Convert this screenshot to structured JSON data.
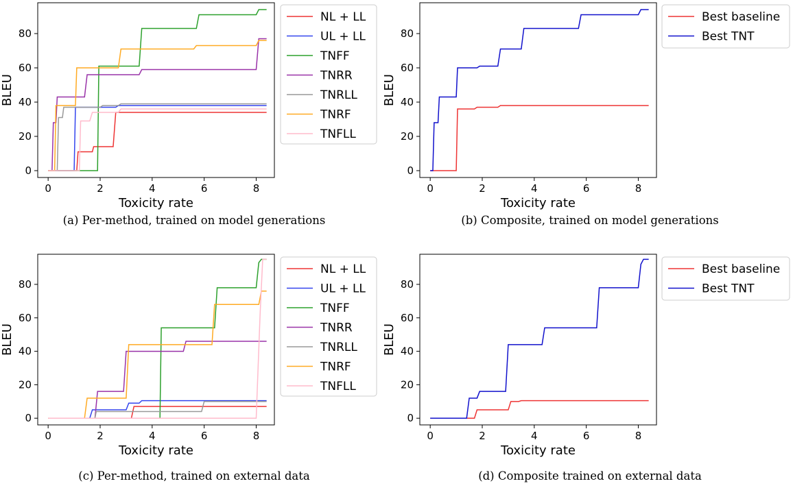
{
  "chart_data": [
    {
      "panel": "a",
      "type": "line",
      "caption": "(a) Per-method, trained on model generations",
      "xlabel": "Toxicity rate",
      "ylabel": "BLEU",
      "xlim": [
        -0.4,
        8.7
      ],
      "ylim": [
        -4,
        98
      ],
      "xticks": [
        0,
        2,
        4,
        6,
        8
      ],
      "yticks": [
        0,
        20,
        40,
        60,
        80
      ],
      "grid": false,
      "legend": "outside-right",
      "series": [
        {
          "name": "NL + LL",
          "color": "#ee3333",
          "step": true,
          "points": [
            [
              0,
              0
            ],
            [
              1.1,
              0
            ],
            [
              1.15,
              11
            ],
            [
              1.7,
              11
            ],
            [
              1.75,
              14
            ],
            [
              2.5,
              14
            ],
            [
              2.6,
              34
            ],
            [
              8.4,
              34
            ]
          ]
        },
        {
          "name": "UL + LL",
          "color": "#3344ee",
          "step": true,
          "points": [
            [
              0,
              0
            ],
            [
              1.0,
              0
            ],
            [
              1.05,
              37
            ],
            [
              2.6,
              37
            ],
            [
              2.7,
              38
            ],
            [
              8.4,
              38
            ]
          ]
        },
        {
          "name": "TNFF",
          "color": "#2ca02c",
          "step": true,
          "points": [
            [
              0,
              0
            ],
            [
              1.9,
              0
            ],
            [
              1.95,
              61
            ],
            [
              3.5,
              61
            ],
            [
              3.6,
              83
            ],
            [
              5.7,
              83
            ],
            [
              5.8,
              91
            ],
            [
              8.0,
              91
            ],
            [
              8.1,
              94
            ],
            [
              8.4,
              94
            ]
          ]
        },
        {
          "name": "TNRR",
          "color": "#9932a8",
          "step": true,
          "points": [
            [
              0,
              0
            ],
            [
              0.15,
              0
            ],
            [
              0.2,
              28
            ],
            [
              0.3,
              28
            ],
            [
              0.35,
              43
            ],
            [
              1.4,
              43
            ],
            [
              1.5,
              56
            ],
            [
              3.5,
              56
            ],
            [
              3.6,
              59
            ],
            [
              8.0,
              59
            ],
            [
              8.1,
              77
            ],
            [
              8.4,
              77
            ]
          ]
        },
        {
          "name": "TNRLL",
          "color": "#999999",
          "step": true,
          "points": [
            [
              0,
              0
            ],
            [
              0.35,
              0
            ],
            [
              0.4,
              31
            ],
            [
              0.55,
              31
            ],
            [
              0.6,
              37
            ],
            [
              2.0,
              37
            ],
            [
              2.1,
              38
            ],
            [
              2.7,
              38
            ],
            [
              2.8,
              39
            ],
            [
              8.4,
              39
            ]
          ]
        },
        {
          "name": "TNRF",
          "color": "#ffaa22",
          "step": true,
          "points": [
            [
              0,
              0
            ],
            [
              0.25,
              0
            ],
            [
              0.3,
              38
            ],
            [
              1.05,
              38
            ],
            [
              1.1,
              60
            ],
            [
              2.7,
              60
            ],
            [
              2.8,
              71
            ],
            [
              5.6,
              71
            ],
            [
              5.7,
              73
            ],
            [
              8.0,
              73
            ],
            [
              8.1,
              76
            ],
            [
              8.4,
              76
            ]
          ]
        },
        {
          "name": "TNFLL",
          "color": "#ffbbcc",
          "step": true,
          "points": [
            [
              0,
              0
            ],
            [
              1.2,
              0
            ],
            [
              1.25,
              29
            ],
            [
              1.6,
              29
            ],
            [
              1.7,
              34
            ],
            [
              2.7,
              34
            ],
            [
              2.8,
              36
            ],
            [
              8.4,
              36
            ]
          ]
        }
      ]
    },
    {
      "panel": "b",
      "type": "line",
      "caption": "(b) Composite, trained on model generations",
      "xlabel": "Toxicity rate",
      "ylabel": "BLEU",
      "xlim": [
        -0.4,
        8.7
      ],
      "ylim": [
        -4,
        98
      ],
      "xticks": [
        0,
        2,
        4,
        6,
        8
      ],
      "yticks": [
        0,
        20,
        40,
        60,
        80
      ],
      "grid": false,
      "legend": "outside-right",
      "series": [
        {
          "name": "Best baseline",
          "color": "#ee3333",
          "step": true,
          "points": [
            [
              0,
              0
            ],
            [
              1.0,
              0
            ],
            [
              1.05,
              36
            ],
            [
              1.7,
              36
            ],
            [
              1.8,
              37
            ],
            [
              2.6,
              37
            ],
            [
              2.7,
              38
            ],
            [
              8.4,
              38
            ]
          ]
        },
        {
          "name": "Best TNT",
          "color": "#1111cc",
          "step": true,
          "points": [
            [
              0,
              0
            ],
            [
              0.1,
              0
            ],
            [
              0.15,
              28
            ],
            [
              0.3,
              28
            ],
            [
              0.35,
              43
            ],
            [
              1.0,
              43
            ],
            [
              1.05,
              60
            ],
            [
              1.8,
              60
            ],
            [
              1.9,
              61
            ],
            [
              2.6,
              61
            ],
            [
              2.7,
              71
            ],
            [
              3.5,
              71
            ],
            [
              3.6,
              83
            ],
            [
              5.7,
              83
            ],
            [
              5.8,
              91
            ],
            [
              8.0,
              91
            ],
            [
              8.1,
              94
            ],
            [
              8.4,
              94
            ]
          ]
        }
      ]
    },
    {
      "panel": "c",
      "type": "line",
      "caption": "(c) Per-method, trained on external data",
      "xlabel": "Toxicity rate",
      "ylabel": "BLEU",
      "xlim": [
        -0.4,
        8.7
      ],
      "ylim": [
        -4,
        98
      ],
      "xticks": [
        0,
        2,
        4,
        6,
        8
      ],
      "yticks": [
        0,
        20,
        40,
        60,
        80
      ],
      "grid": false,
      "legend": "outside-right",
      "series": [
        {
          "name": "NL + LL",
          "color": "#ee3333",
          "step": true,
          "points": [
            [
              0,
              0
            ],
            [
              3.2,
              0
            ],
            [
              3.3,
              7
            ],
            [
              8.4,
              7
            ]
          ]
        },
        {
          "name": "UL + LL",
          "color": "#3344ee",
          "step": true,
          "points": [
            [
              0,
              0
            ],
            [
              1.6,
              0
            ],
            [
              1.7,
              5
            ],
            [
              3.0,
              5
            ],
            [
              3.1,
              9
            ],
            [
              3.5,
              9
            ],
            [
              3.6,
              10.5
            ],
            [
              8.4,
              10.5
            ]
          ]
        },
        {
          "name": "TNFF",
          "color": "#2ca02c",
          "step": true,
          "points": [
            [
              0,
              0
            ],
            [
              4.3,
              0
            ],
            [
              4.35,
              54
            ],
            [
              6.4,
              54
            ],
            [
              6.5,
              78
            ],
            [
              8.0,
              78
            ],
            [
              8.1,
              93
            ],
            [
              8.2,
              95
            ],
            [
              8.4,
              95
            ]
          ]
        },
        {
          "name": "TNRR",
          "color": "#9932a8",
          "step": true,
          "points": [
            [
              0,
              0
            ],
            [
              1.8,
              0
            ],
            [
              1.9,
              16
            ],
            [
              2.9,
              16
            ],
            [
              3.0,
              40
            ],
            [
              5.2,
              40
            ],
            [
              5.3,
              46
            ],
            [
              8.4,
              46
            ]
          ]
        },
        {
          "name": "TNRLL",
          "color": "#999999",
          "step": true,
          "points": [
            [
              0,
              0
            ],
            [
              1.8,
              0
            ],
            [
              1.85,
              4
            ],
            [
              5.9,
              4
            ],
            [
              6.0,
              10
            ],
            [
              8.4,
              10
            ]
          ]
        },
        {
          "name": "TNRF",
          "color": "#ffaa22",
          "step": true,
          "points": [
            [
              0,
              0
            ],
            [
              1.4,
              0
            ],
            [
              1.5,
              12
            ],
            [
              3.0,
              12
            ],
            [
              3.1,
              44
            ],
            [
              6.3,
              44
            ],
            [
              6.4,
              68
            ],
            [
              8.1,
              68
            ],
            [
              8.2,
              76
            ],
            [
              8.4,
              76
            ]
          ]
        },
        {
          "name": "TNFLL",
          "color": "#ffbbcc",
          "step": true,
          "points": [
            [
              0,
              0
            ],
            [
              8.0,
              0
            ],
            [
              8.15,
              62
            ],
            [
              8.25,
              95
            ],
            [
              8.4,
              95
            ]
          ]
        }
      ]
    },
    {
      "panel": "d",
      "type": "line",
      "caption": "(d) Composite trained on external data",
      "xlabel": "Toxicity rate",
      "ylabel": "BLEU",
      "xlim": [
        -0.4,
        8.7
      ],
      "ylim": [
        -4,
        98
      ],
      "xticks": [
        0,
        2,
        4,
        6,
        8
      ],
      "yticks": [
        0,
        20,
        40,
        60,
        80
      ],
      "grid": false,
      "legend": "outside-right",
      "series": [
        {
          "name": "Best baseline",
          "color": "#ee3333",
          "step": true,
          "points": [
            [
              0,
              0
            ],
            [
              1.7,
              0
            ],
            [
              1.8,
              5
            ],
            [
              3.0,
              5
            ],
            [
              3.1,
              10
            ],
            [
              3.4,
              10
            ],
            [
              3.5,
              10.5
            ],
            [
              8.4,
              10.5
            ]
          ]
        },
        {
          "name": "Best TNT",
          "color": "#1111cc",
          "step": true,
          "points": [
            [
              0,
              0
            ],
            [
              1.4,
              0
            ],
            [
              1.5,
              12
            ],
            [
              1.8,
              12
            ],
            [
              1.9,
              16
            ],
            [
              2.9,
              16
            ],
            [
              3.0,
              44
            ],
            [
              4.3,
              44
            ],
            [
              4.4,
              54
            ],
            [
              6.4,
              54
            ],
            [
              6.5,
              78
            ],
            [
              8.0,
              78
            ],
            [
              8.1,
              92
            ],
            [
              8.2,
              95
            ],
            [
              8.4,
              95
            ]
          ]
        }
      ]
    }
  ]
}
